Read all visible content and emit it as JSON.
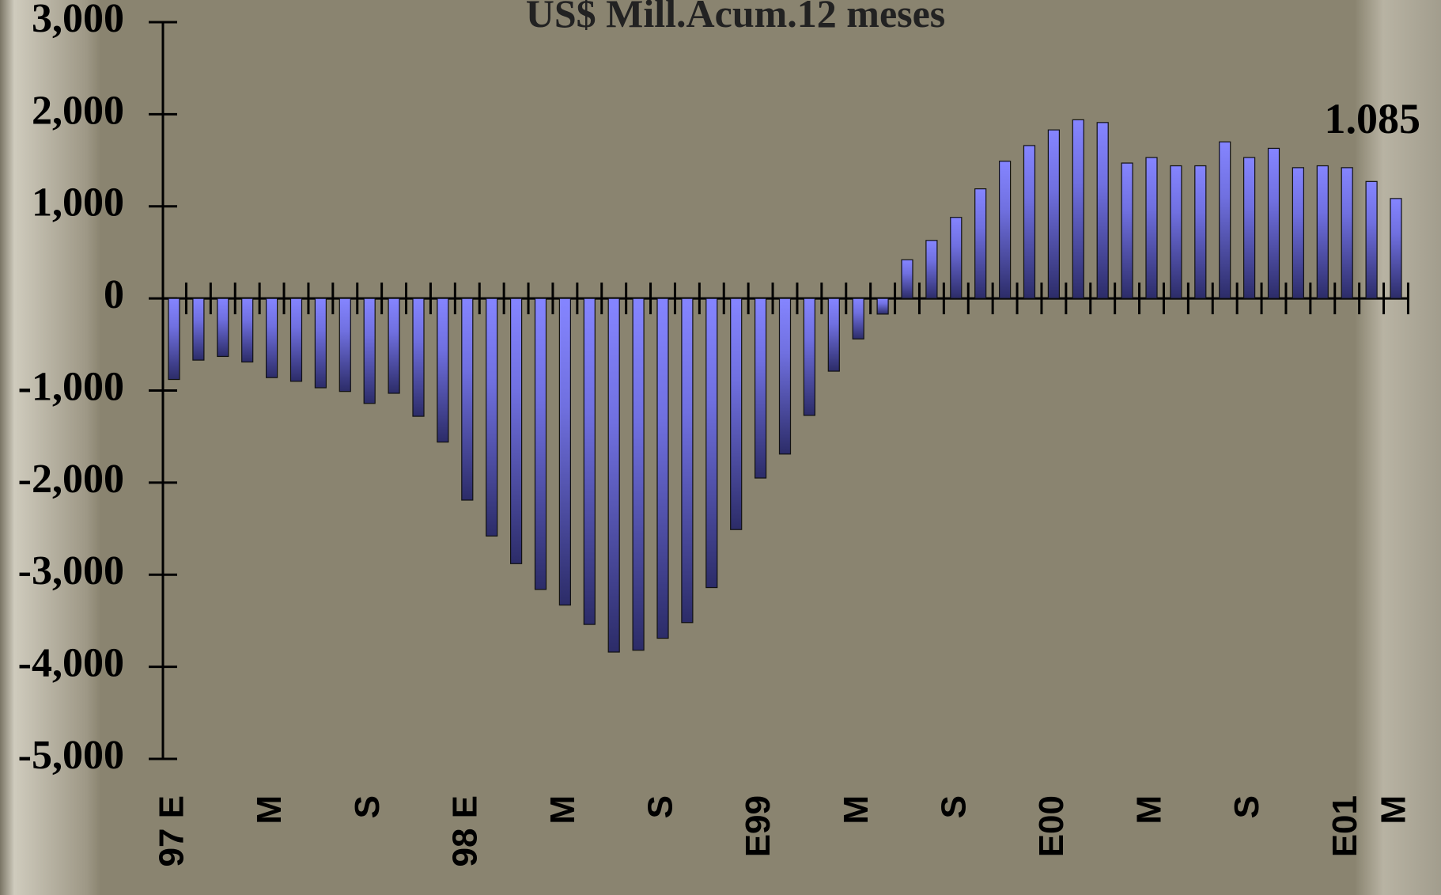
{
  "chart_data": {
    "type": "bar",
    "title": "US$ Mill.Acum.12 meses",
    "categories": [
      "97 E",
      null,
      null,
      null,
      "M",
      null,
      null,
      null,
      "S",
      null,
      null,
      null,
      "98 E",
      null,
      null,
      null,
      "M",
      null,
      null,
      null,
      "S",
      null,
      null,
      null,
      "E99",
      null,
      null,
      null,
      "M",
      null,
      null,
      null,
      "S",
      null,
      null,
      null,
      "E00",
      null,
      null,
      null,
      "M",
      null,
      null,
      null,
      "S",
      null,
      null,
      null,
      "E01",
      null,
      "M"
    ],
    "values": [
      -880,
      -670,
      -630,
      -690,
      -860,
      -900,
      -970,
      -1010,
      -1140,
      -1030,
      -1280,
      -1560,
      -2190,
      -2580,
      -2880,
      -3160,
      -3330,
      -3540,
      -3840,
      -3820,
      -3690,
      -3520,
      -3140,
      -2510,
      -1950,
      -1690,
      -1270,
      -790,
      -440,
      -170,
      420,
      630,
      880,
      1190,
      1490,
      1660,
      1830,
      1940,
      1910,
      1470,
      1530,
      1440,
      1440,
      1700,
      1530,
      1630,
      1420,
      1440,
      1420,
      1270,
      1085
    ],
    "value_labels": [
      null,
      null,
      null,
      null,
      null,
      null,
      null,
      null,
      null,
      null,
      null,
      null,
      null,
      null,
      null,
      null,
      null,
      null,
      null,
      null,
      null,
      null,
      null,
      null,
      null,
      null,
      null,
      null,
      null,
      null,
      null,
      null,
      null,
      null,
      null,
      null,
      null,
      null,
      null,
      null,
      null,
      null,
      null,
      null,
      null,
      null,
      null,
      null,
      null,
      null,
      "1.085"
    ],
    "color": "#8585ff",
    "ylim": [
      -5000,
      3000
    ],
    "yticks": [
      {
        "value": -5000,
        "label": "-5,000"
      },
      {
        "value": -4000,
        "label": "-4,000"
      },
      {
        "value": -3000,
        "label": "-3,000"
      },
      {
        "value": -2000,
        "label": "-2,000"
      },
      {
        "value": -1000,
        "label": "-1,000"
      },
      0,
      {
        "value": 1000,
        "label": "1,000"
      },
      {
        "value": 2000,
        "label": "2,000"
      },
      {
        "value": 3000,
        "label": "3,000"
      }
    ]
  }
}
